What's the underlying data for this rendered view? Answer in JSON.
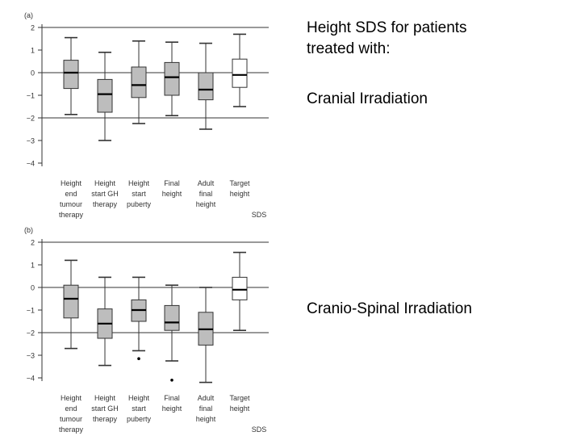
{
  "header": {
    "line1": "Height SDS for patients",
    "line2": "treated with:"
  },
  "labels": {
    "panel_a_caption": "Cranial Irradiation",
    "panel_b_caption": "Cranio-Spinal Irradiation"
  },
  "colors": {
    "box_fill": "#bdbdbd",
    "target_box_fill": "#ffffff",
    "line": "#333333"
  },
  "chart_data": [
    {
      "type": "boxplot",
      "panel_label": "(a)",
      "unit_label": "SDS",
      "ylim": [
        -4,
        2
      ],
      "yticks": [
        2,
        1,
        0,
        -1,
        -2,
        -3,
        -4
      ],
      "reference_lines": [
        2,
        0,
        -2
      ],
      "categories": [
        [
          "Height",
          "end",
          "tumour",
          "therapy"
        ],
        [
          "Height",
          "start GH",
          "therapy"
        ],
        [
          "Height",
          "start",
          "puberty"
        ],
        [
          "Final",
          "height"
        ],
        [
          "Adult",
          "final",
          "height"
        ],
        [
          "Target",
          "height"
        ]
      ],
      "boxes": [
        {
          "min": -1.85,
          "q1": -0.7,
          "median": 0.0,
          "q3": 0.55,
          "max": 1.55,
          "filled": true
        },
        {
          "min": -3.0,
          "q1": -1.75,
          "median": -0.95,
          "q3": -0.3,
          "max": 0.9,
          "filled": true
        },
        {
          "min": -2.25,
          "q1": -1.1,
          "median": -0.55,
          "q3": 0.25,
          "max": 1.4,
          "filled": true
        },
        {
          "min": -1.9,
          "q1": -1.0,
          "median": -0.2,
          "q3": 0.45,
          "max": 1.35,
          "filled": true
        },
        {
          "min": -2.5,
          "q1": -1.2,
          "median": -0.75,
          "q3": 0.0,
          "max": 1.3,
          "filled": true
        },
        {
          "min": -1.5,
          "q1": -0.65,
          "median": -0.1,
          "q3": 0.6,
          "max": 1.7,
          "filled": false
        }
      ],
      "outliers": []
    },
    {
      "type": "boxplot",
      "panel_label": "(b)",
      "unit_label": "SDS",
      "ylim": [
        -4,
        2
      ],
      "yticks": [
        2,
        1,
        0,
        -1,
        -2,
        -3,
        -4
      ],
      "reference_lines": [
        2,
        0,
        -2
      ],
      "categories": [
        [
          "Height",
          "end",
          "tumour",
          "therapy"
        ],
        [
          "Height",
          "start GH",
          "therapy"
        ],
        [
          "Height",
          "start",
          "puberty"
        ],
        [
          "Final",
          "height"
        ],
        [
          "Adult",
          "final",
          "height"
        ],
        [
          "Target",
          "height"
        ]
      ],
      "boxes": [
        {
          "min": -2.7,
          "q1": -1.35,
          "median": -0.5,
          "q3": 0.1,
          "max": 1.2,
          "filled": true
        },
        {
          "min": -3.45,
          "q1": -2.25,
          "median": -1.6,
          "q3": -0.95,
          "max": 0.45,
          "filled": true
        },
        {
          "min": -2.8,
          "q1": -1.5,
          "median": -1.0,
          "q3": -0.55,
          "max": 0.45,
          "filled": true
        },
        {
          "min": -3.25,
          "q1": -1.9,
          "median": -1.55,
          "q3": -0.8,
          "max": 0.1,
          "filled": true
        },
        {
          "min": -4.2,
          "q1": -2.55,
          "median": -1.85,
          "q3": -1.1,
          "max": 0.0,
          "filled": true
        },
        {
          "min": -1.9,
          "q1": -0.55,
          "median": -0.1,
          "q3": 0.45,
          "max": 1.55,
          "filled": false
        }
      ],
      "outliers": [
        {
          "index": 2,
          "value": -3.15
        },
        {
          "index": 3,
          "value": -4.1
        }
      ]
    }
  ]
}
